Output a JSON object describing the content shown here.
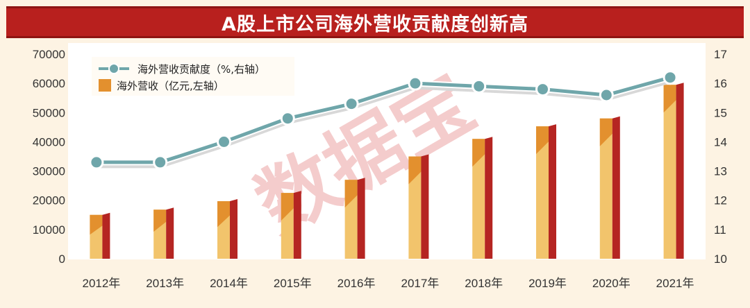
{
  "title": "A股上市公司海外营收贡献度创新高",
  "watermark": "数据宝",
  "chart_data": {
    "type": "bar",
    "title": "A股上市公司海外营收贡献度创新高",
    "categories": [
      "2012年",
      "2013年",
      "2014年",
      "2015年",
      "2016年",
      "2017年",
      "2018年",
      "2019年",
      "2020年",
      "2021年"
    ],
    "series": [
      {
        "name": "海外营收（亿元,左轴）",
        "type": "bar",
        "axis": "left",
        "values": [
          15000,
          16800,
          19700,
          22500,
          27000,
          35000,
          41000,
          45300,
          48000,
          59500
        ]
      },
      {
        "name": "海外营收贡献度（%,右轴）",
        "type": "line",
        "axis": "right",
        "values": [
          13.3,
          13.3,
          14.0,
          14.8,
          15.3,
          16.0,
          15.9,
          15.8,
          15.6,
          16.2
        ]
      }
    ],
    "y_left": {
      "ylim": [
        0,
        70000
      ],
      "ticks": [
        "0",
        "10000",
        "20000",
        "30000",
        "40000",
        "50000",
        "60000",
        "70000"
      ]
    },
    "y_right": {
      "ylim": [
        10,
        17
      ],
      "ticks": [
        "10",
        "11",
        "12",
        "13",
        "14",
        "15",
        "16",
        "17"
      ]
    },
    "legend_position": "top-left",
    "grid": false,
    "colors": {
      "bar_front_light": "#F2C46C",
      "bar_front_dark": "#E3902E",
      "bar_side": "#B52522",
      "line": "#6FA6AA",
      "line_shadow": "#D8D8D8",
      "marker_stroke": "#FFFFFF"
    }
  }
}
